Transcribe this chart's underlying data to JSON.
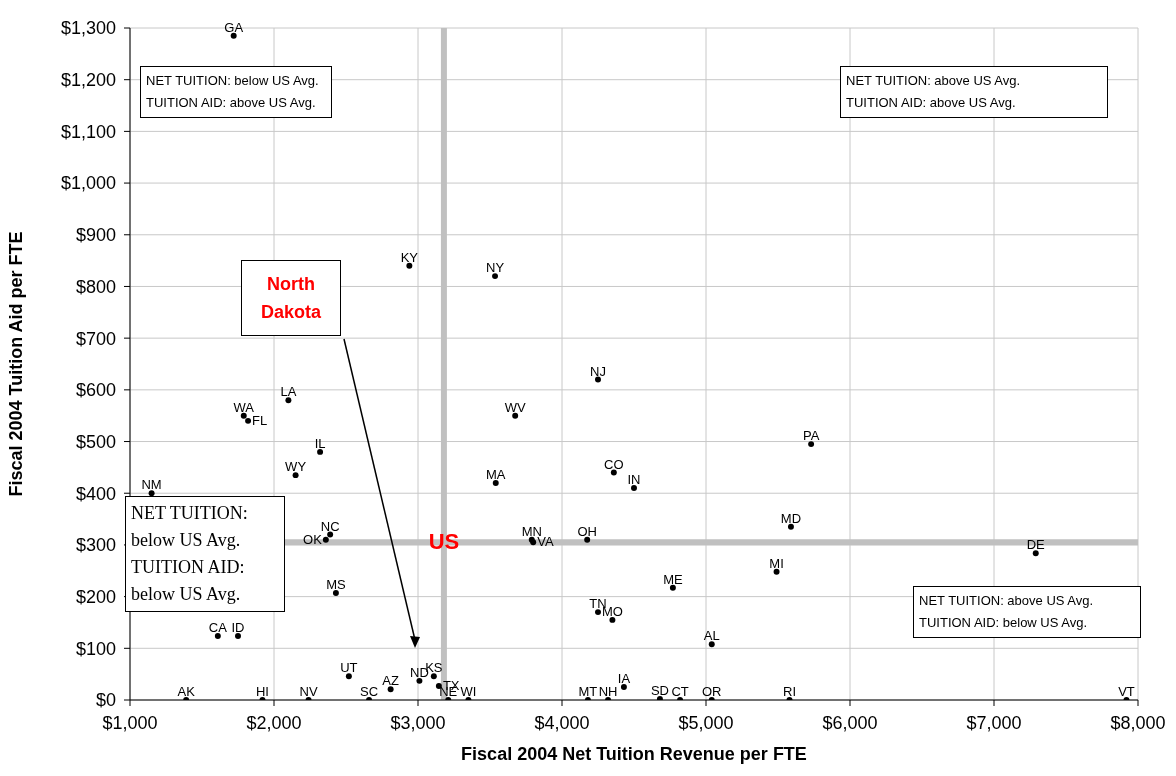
{
  "chart_data": {
    "type": "scatter",
    "xlabel": "Fiscal 2004 Net Tuition Revenue per FTE",
    "ylabel": "Fiscal 2004 Tuition Aid per FTE",
    "xlim": [
      1000,
      8000
    ],
    "xticks": [
      {
        "value": 1000,
        "label": "$1,000"
      },
      {
        "value": 2000,
        "label": "$2,000"
      },
      {
        "value": 3000,
        "label": "$3,000"
      },
      {
        "value": 4000,
        "label": "$4,000"
      },
      {
        "value": 5000,
        "label": "$5,000"
      },
      {
        "value": 6000,
        "label": "$6,000"
      },
      {
        "value": 7000,
        "label": "$7,000"
      },
      {
        "value": 8000,
        "label": "$8,000"
      }
    ],
    "ylim": [
      0,
      1300
    ],
    "yticks": [
      {
        "value": 0,
        "label": "$0"
      },
      {
        "value": 100,
        "label": "$100"
      },
      {
        "value": 200,
        "label": "$200"
      },
      {
        "value": 300,
        "label": "$300"
      },
      {
        "value": 400,
        "label": "$400"
      },
      {
        "value": 500,
        "label": "$500"
      },
      {
        "value": 600,
        "label": "$600"
      },
      {
        "value": 700,
        "label": "$700"
      },
      {
        "value": 800,
        "label": "$800"
      },
      {
        "value": 900,
        "label": "$900"
      },
      {
        "value": 1000,
        "label": "$1,000"
      },
      {
        "value": 1100,
        "label": "$1,100"
      },
      {
        "value": 1200,
        "label": "$1,200"
      },
      {
        "value": 1300,
        "label": "$1,300"
      }
    ],
    "grid": true,
    "marker": "circle",
    "series": [
      {
        "color": "#000000",
        "x": [
          1720,
          2940,
          3535,
          4250,
          3675,
          5730,
          2100,
          1790,
          1820,
          2320,
          2150,
          1150,
          3540,
          4360,
          4500,
          5590,
          2390,
          2360,
          3790,
          3800,
          4175,
          7290,
          5490,
          4770,
          2430,
          4250,
          4350,
          1610,
          1750,
          5040,
          2520,
          3110,
          3145,
          3010,
          2810,
          4430,
          1390,
          1920,
          2240,
          2660,
          3210,
          3350,
          4180,
          4320,
          4680,
          4820,
          5040,
          5580,
          7920
        ],
        "values": [
          1285,
          840,
          820,
          620,
          550,
          495,
          580,
          550,
          540,
          480,
          435,
          400,
          420,
          440,
          410,
          335,
          320,
          310,
          310,
          305,
          310,
          284,
          248,
          217,
          207,
          170,
          155,
          124,
          124,
          108,
          46,
          46,
          27,
          37,
          21,
          25,
          0,
          0,
          0,
          0,
          0,
          0,
          0,
          0,
          2,
          0,
          0,
          0,
          0
        ],
        "value_labels": [
          "GA",
          "KY",
          "NY",
          "NJ",
          "WV",
          "PA",
          "LA",
          "WA",
          "FL",
          "IL",
          "WY",
          "NM",
          "MA",
          "CO",
          "IN",
          "MD",
          "NC",
          "OK",
          "MN",
          "VA",
          "OH",
          "DE",
          "MI",
          "ME",
          "MS",
          "TN",
          "MO",
          "CA",
          "ID",
          "AL",
          "UT",
          "KS",
          "TX",
          "ND",
          "AZ",
          "IA",
          "AK",
          "HI",
          "NV",
          "SC",
          "NE",
          "WI",
          "MT",
          "NH",
          "SD",
          "CT",
          "OR",
          "RI",
          "VT"
        ]
      }
    ],
    "ref_lines": [
      {
        "axis": "x",
        "value": 3180,
        "color": "#c0c0c0"
      },
      {
        "axis": "y",
        "value": 305,
        "color": "#c0c0c0"
      }
    ],
    "annotations": [
      "NET TUITION: below US Avg.\nTUITION AID: above US Avg.",
      "NET TUITION: above US Avg.\nTUITION AID: above US Avg.",
      "NET TUITION: below US Avg.\nTUITION AID: below US Avg.",
      "NET TUITION: above US Avg.\nTUITION AID: below US Avg.",
      "North Dakota",
      {
        "text": "US",
        "x": 3180,
        "y": 305
      }
    ]
  }
}
